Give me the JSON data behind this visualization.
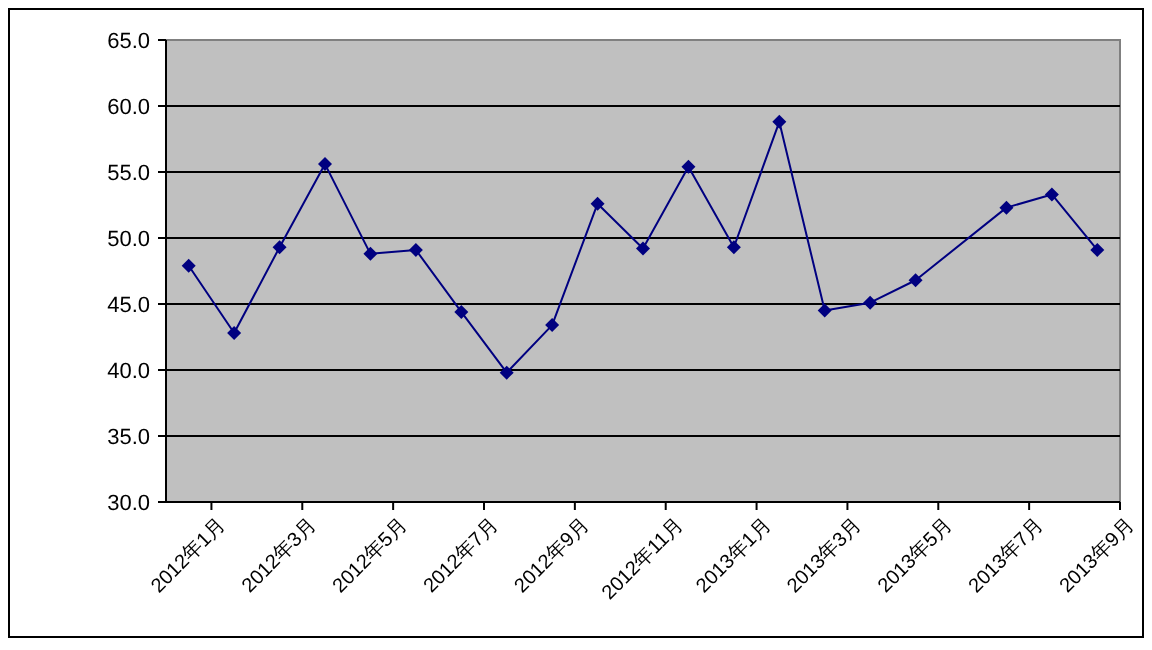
{
  "chart_data": {
    "type": "line",
    "categories": [
      "2012年1月",
      null,
      "2012年3月",
      null,
      "2012年5月",
      null,
      "2012年7月",
      null,
      "2012年9月",
      null,
      "2012年11月",
      null,
      "2013年1月",
      null,
      "2013年3月",
      null,
      "2013年5月",
      null,
      "2013年7月",
      null,
      "2013年9月"
    ],
    "series": [
      {
        "color": "#000080",
        "values": [
          47.9,
          42.8,
          49.3,
          55.6,
          48.8,
          49.1,
          44.4,
          39.8,
          43.4,
          52.6,
          49.2,
          55.4,
          49.3,
          58.8,
          44.5,
          45.1,
          46.8,
          null,
          52.3,
          53.3,
          49.1
        ]
      }
    ],
    "ylim": [
      30,
      65
    ],
    "yticks": [
      {
        "value": 30,
        "label": "30.0"
      },
      {
        "value": 35,
        "label": "35.0"
      },
      {
        "value": 40,
        "label": "40.0"
      },
      {
        "value": 45,
        "label": "45.0"
      },
      {
        "value": 50,
        "label": "50.0"
      },
      {
        "value": 55,
        "label": "55.0"
      },
      {
        "value": 60,
        "label": "60.0"
      },
      {
        "value": 65,
        "label": "65.0"
      }
    ],
    "grid": "y",
    "marker": "diamond",
    "line_style": "solid"
  }
}
